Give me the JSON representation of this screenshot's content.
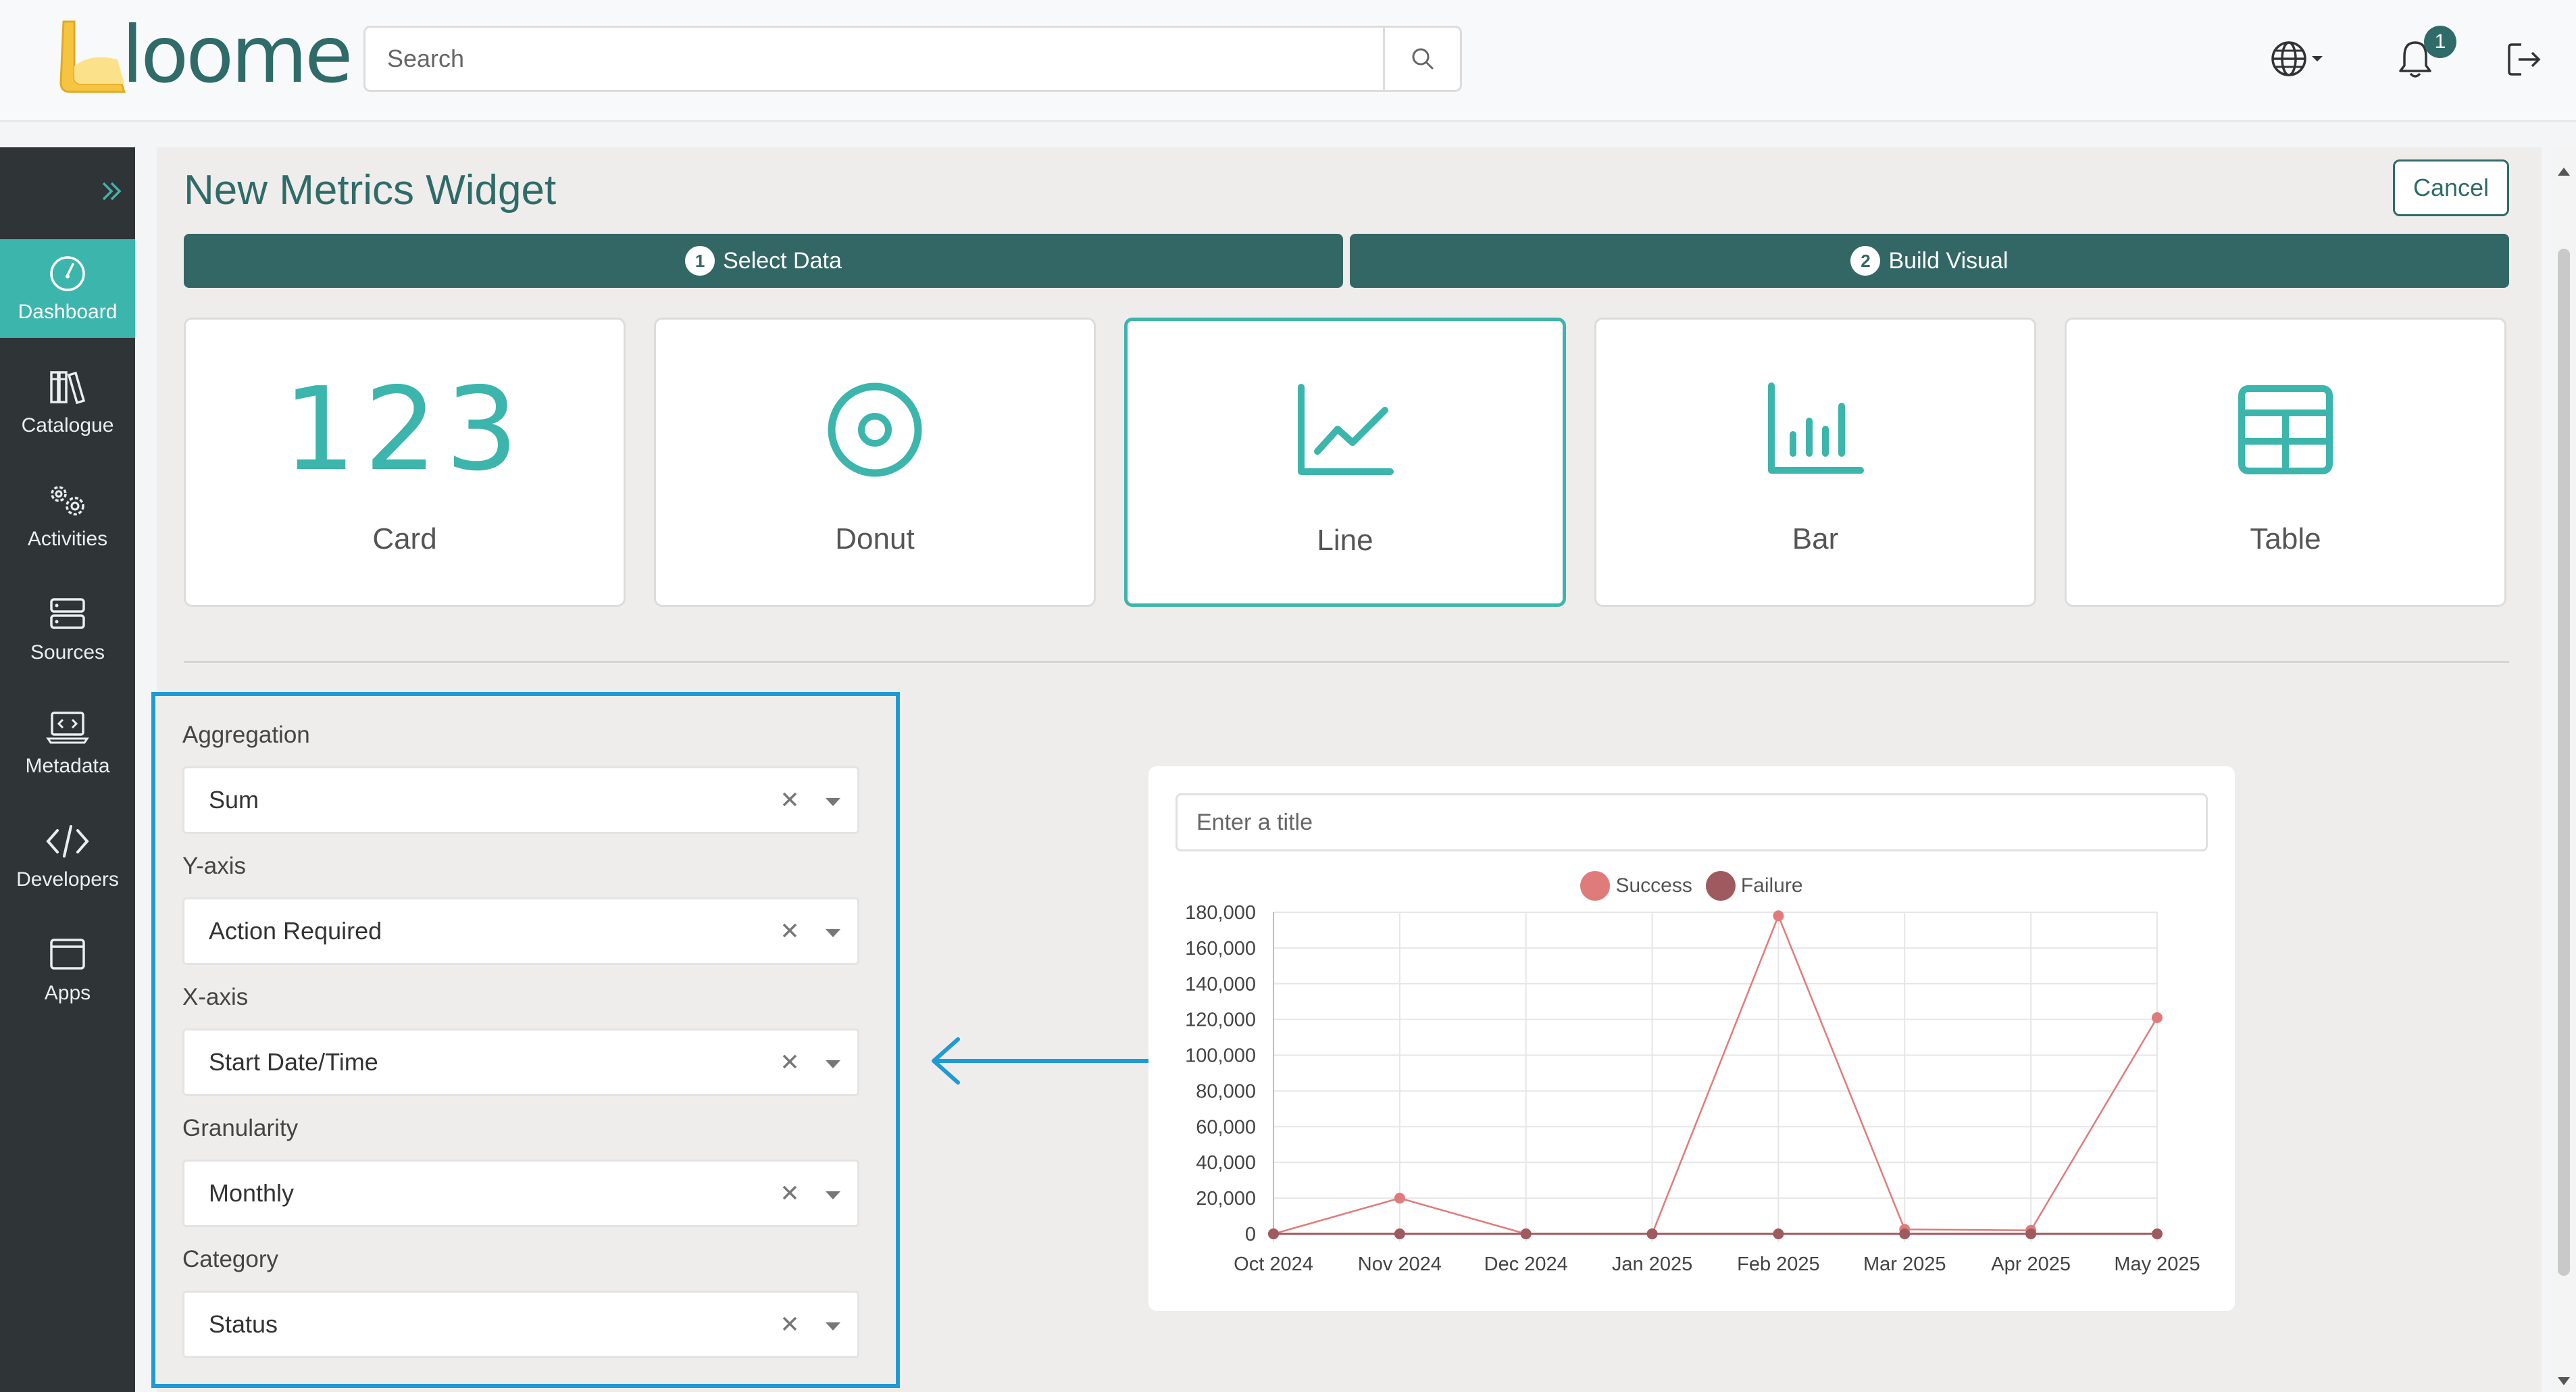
{
  "header": {
    "logo_text": "loome",
    "search": {
      "placeholder": "Search",
      "value": ""
    },
    "notification_count": "1"
  },
  "sidebar": {
    "items": [
      {
        "label": "Dashboard",
        "icon": "dashboard-icon",
        "active": true
      },
      {
        "label": "Catalogue",
        "icon": "catalogue-icon"
      },
      {
        "label": "Activities",
        "icon": "activities-icon"
      },
      {
        "label": "Sources",
        "icon": "sources-icon"
      },
      {
        "label": "Metadata",
        "icon": "metadata-icon"
      },
      {
        "label": "Developers",
        "icon": "developers-icon"
      },
      {
        "label": "Apps",
        "icon": "apps-icon"
      }
    ]
  },
  "main": {
    "title": "New Metrics Widget",
    "cancel_label": "Cancel",
    "steps": [
      {
        "number": "1",
        "label": "Select Data"
      },
      {
        "number": "2",
        "label": "Build Visual"
      }
    ],
    "tiles": [
      {
        "label": "Card",
        "visual": "123"
      },
      {
        "label": "Donut"
      },
      {
        "label": "Line",
        "selected": true
      },
      {
        "label": "Bar"
      },
      {
        "label": "Table"
      }
    ]
  },
  "form": {
    "fields": [
      {
        "label": "Aggregation",
        "value": "Sum"
      },
      {
        "label": "Y-axis",
        "value": "Action Required"
      },
      {
        "label": "X-axis",
        "value": "Start Date/Time"
      },
      {
        "label": "Granularity",
        "value": "Monthly"
      },
      {
        "label": "Category",
        "value": "Status"
      }
    ]
  },
  "chart_panel": {
    "title_placeholder": "Enter a title",
    "title_value": ""
  },
  "chart_data": {
    "type": "line",
    "categories": [
      "Oct 2024",
      "Nov 2024",
      "Dec 2024",
      "Jan 2025",
      "Feb 2025",
      "Mar 2025",
      "Apr 2025",
      "May 2025"
    ],
    "series": [
      {
        "name": "Success",
        "color": "#e07b7b",
        "values": [
          0,
          20000,
          0,
          0,
          178000,
          2500,
          2000,
          121000
        ]
      },
      {
        "name": "Failure",
        "color": "#9e5a5e",
        "values": [
          0,
          0,
          0,
          0,
          0,
          0,
          0,
          0
        ]
      }
    ],
    "ylim": [
      0,
      180000
    ],
    "yticks": [
      "0",
      "20,000",
      "40,000",
      "60,000",
      "80,000",
      "100,000",
      "120,000",
      "140,000",
      "160,000",
      "180,000"
    ],
    "legend": "top",
    "grid": true
  },
  "colors": {
    "accent": "#3cb5ac",
    "brand": "#2f6b68",
    "step_bg": "#336766",
    "highlight_box": "#1e9ad6"
  }
}
